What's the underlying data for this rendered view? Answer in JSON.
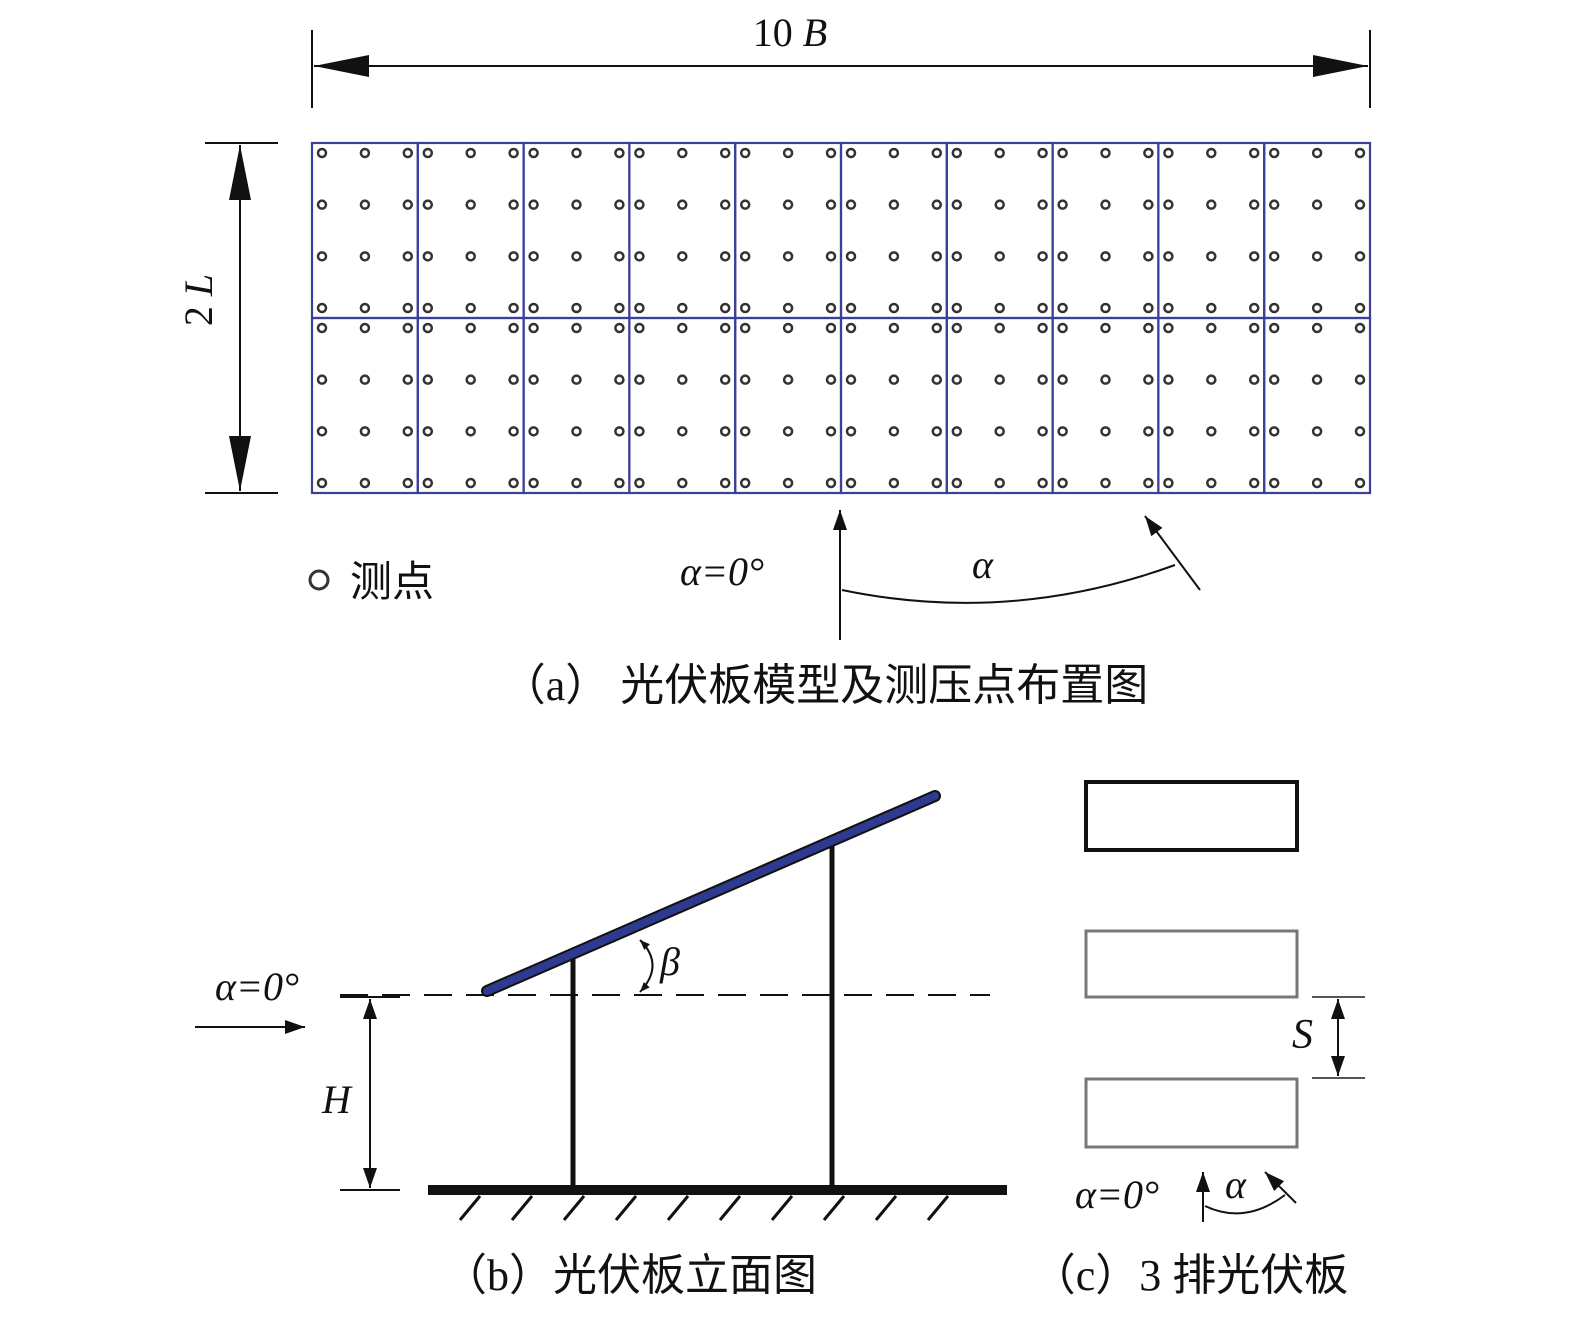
{
  "panel_a": {
    "width_label_num": "10",
    "width_label_var": "B",
    "height_label_num": "2",
    "height_label_var": "L",
    "grid": {
      "columns": 10,
      "rows": 2,
      "taps_per_cell_x": 3,
      "taps_per_cell_y": 4
    },
    "legend_label": "测点",
    "alpha_zero_label": "α=0°",
    "alpha_label": "α",
    "caption": "（a） 光伏板模型及测压点布置图"
  },
  "panel_b": {
    "alpha_zero_label": "α=0°",
    "beta_label": "β",
    "height_label": "H",
    "caption": "（b）光伏板立面图"
  },
  "panel_c": {
    "spacing_label": "S",
    "alpha_zero_label": "α=0°",
    "alpha_label": "α",
    "caption": "（c）3 排光伏板"
  },
  "colors": {
    "panel_blue": "#3a3f9a",
    "panel_fill": "#2e3a8f",
    "line": "#111111",
    "gray": "#777777"
  }
}
